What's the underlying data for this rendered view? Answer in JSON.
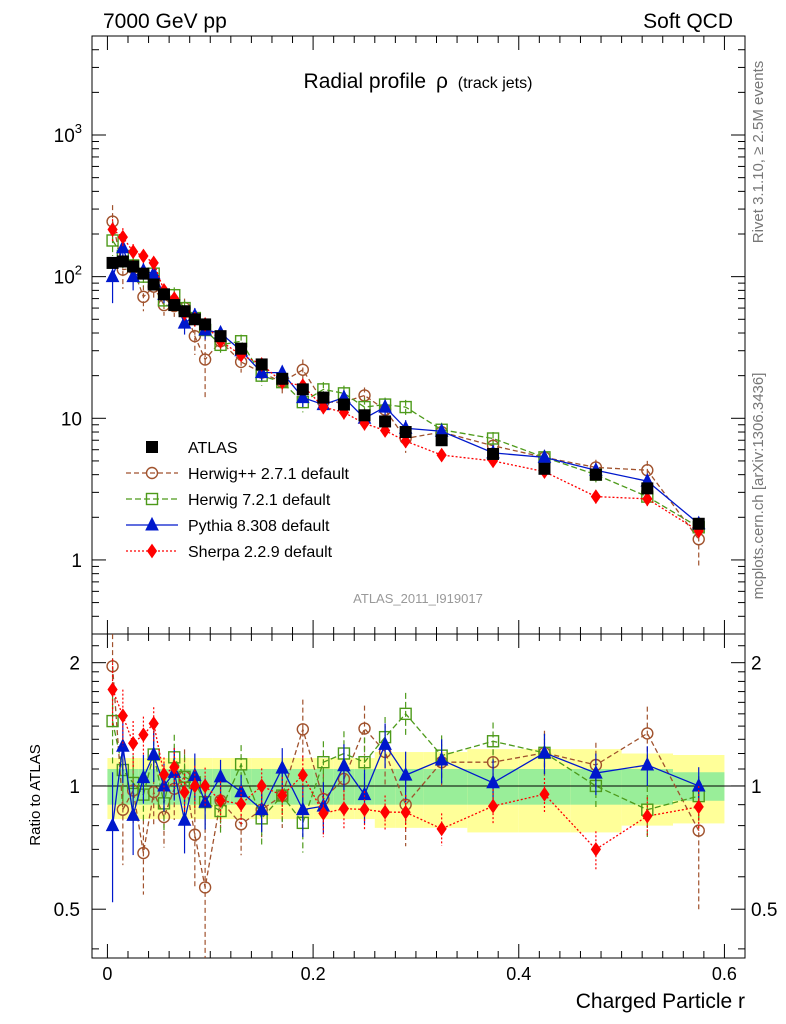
{
  "header": {
    "left": "7000 GeV pp",
    "right": "Soft QCD"
  },
  "side_labels": {
    "rivet": "Rivet 3.1.10, ≥ 2.5M events",
    "mcplots": "mcplots.cern.ch [arXiv:1306.3436]"
  },
  "analysis_id": "ATLAS_2011_I919017",
  "chart_data": {
    "type": "scatter",
    "title_main": "Radial profile",
    "title_symbol": "ρ",
    "title_suffix": "(track jets)",
    "xlabel": "Charged Particle r",
    "ylabel": "",
    "ratio_ylabel": "Ratio to ATLAS",
    "xlim": [
      -0.015,
      0.62
    ],
    "ylim": [
      0.3,
      5000
    ],
    "yscale": "log",
    "ratio_ylim": [
      0.38,
      2.35
    ],
    "ratio_yscale": "log",
    "x_ticks": [
      "0",
      "0.2",
      "0.4",
      "0.6"
    ],
    "y_ticks": [
      "1",
      "10",
      "10^2",
      "10^3"
    ],
    "ratio_ticks": [
      "0.5",
      "1",
      "2"
    ],
    "x": [
      0.005,
      0.015,
      0.025,
      0.035,
      0.045,
      0.055,
      0.065,
      0.075,
      0.085,
      0.095,
      0.11,
      0.13,
      0.15,
      0.17,
      0.19,
      0.21,
      0.23,
      0.25,
      0.27,
      0.29,
      0.325,
      0.375,
      0.425,
      0.475,
      0.525,
      0.575
    ],
    "reference": {
      "name": "ATLAS",
      "values": [
        125,
        128,
        118,
        105,
        88,
        75,
        63,
        57,
        50,
        46,
        38,
        31,
        24,
        19,
        16,
        14,
        12.5,
        10.5,
        9.5,
        8.0,
        7.0,
        5.6,
        4.4,
        4.0,
        3.2,
        1.8
      ],
      "band_inner": [
        0.1,
        0.1,
        0.1,
        0.1,
        0.1,
        0.1,
        0.1,
        0.1,
        0.1,
        0.1,
        0.1,
        0.1,
        0.1,
        0.1,
        0.1,
        0.1,
        0.1,
        0.1,
        0.1,
        0.1,
        0.1,
        0.1,
        0.1,
        0.1,
        0.1,
        0.08
      ],
      "band_outer": [
        0.17,
        0.17,
        0.17,
        0.17,
        0.17,
        0.17,
        0.17,
        0.17,
        0.17,
        0.17,
        0.17,
        0.17,
        0.17,
        0.17,
        0.17,
        0.17,
        0.17,
        0.17,
        0.21,
        0.21,
        0.21,
        0.23,
        0.23,
        0.23,
        0.2,
        0.19
      ]
    },
    "series": [
      {
        "name": "Herwig++ 2.7.1 default",
        "color": "#a0522d",
        "marker": "open-circle",
        "dash": "5,3",
        "values": [
          245,
          112,
          115,
          72,
          85,
          63,
          62,
          60,
          38,
          26,
          35,
          25,
          21,
          18,
          22,
          13,
          13,
          14.5,
          11.5,
          7.2,
          8.0,
          6.4,
          5.3,
          4.5,
          4.3,
          1.4
        ],
        "errors": [
          75,
          30,
          20,
          15,
          15,
          10,
          10,
          10,
          10,
          12,
          5,
          4,
          3,
          3,
          4,
          2,
          2,
          2,
          2,
          1.5,
          1,
          0.8,
          0.7,
          0.6,
          0.7,
          0.5
        ]
      },
      {
        "name": "Herwig 7.2.1 default",
        "color": "#4d9a1a",
        "marker": "open-square",
        "dash": "6,3",
        "values": [
          180,
          140,
          120,
          100,
          105,
          68,
          74,
          60,
          51,
          42,
          33,
          35,
          20,
          18,
          13,
          16,
          15,
          12,
          12.5,
          12,
          8.3,
          7.2,
          5.3,
          4.0,
          2.8,
          1.7
        ],
        "errors": [
          40,
          25,
          20,
          15,
          15,
          10,
          10,
          8,
          7,
          6,
          4,
          4,
          3,
          2.5,
          2,
          2,
          2,
          1.8,
          1.5,
          1.5,
          1,
          0.8,
          0.6,
          0.5,
          0.4,
          0.2
        ]
      },
      {
        "name": "Pythia 8.308 default",
        "color": "#0018cc",
        "marker": "triangle",
        "dash": "",
        "values": [
          100,
          160,
          100,
          110,
          105,
          75,
          68,
          47,
          53,
          42,
          40,
          30,
          21,
          21,
          14,
          12.5,
          14,
          10,
          12,
          8.5,
          8.1,
          5.7,
          5.3,
          4.3,
          3.6,
          1.8
        ],
        "errors": [
          35,
          30,
          20,
          15,
          15,
          10,
          10,
          8,
          7,
          6,
          4,
          3,
          2.5,
          2.5,
          2,
          1.8,
          1.8,
          1.5,
          1.5,
          1.2,
          1,
          0.8,
          0.6,
          0.5,
          0.4,
          0.2
        ]
      },
      {
        "name": "Sherpa 2.2.9 default",
        "color": "#ff0000",
        "marker": "diamond",
        "dash": "2,2",
        "values": [
          215,
          190,
          150,
          140,
          125,
          80,
          70,
          55,
          50,
          46,
          35,
          28,
          24,
          18,
          17,
          12,
          11,
          9.2,
          8.2,
          6.9,
          5.5,
          5.0,
          4.2,
          2.8,
          2.7,
          1.6
        ],
        "errors": [
          40,
          30,
          20,
          15,
          12,
          8,
          8,
          6,
          6,
          5,
          4,
          3,
          2.5,
          2,
          2,
          1.5,
          1.2,
          1,
          0.8,
          0.7,
          0.5,
          0.5,
          0.4,
          0.3,
          0.3,
          0.2
        ]
      }
    ],
    "legend_position": "bottom-left"
  }
}
